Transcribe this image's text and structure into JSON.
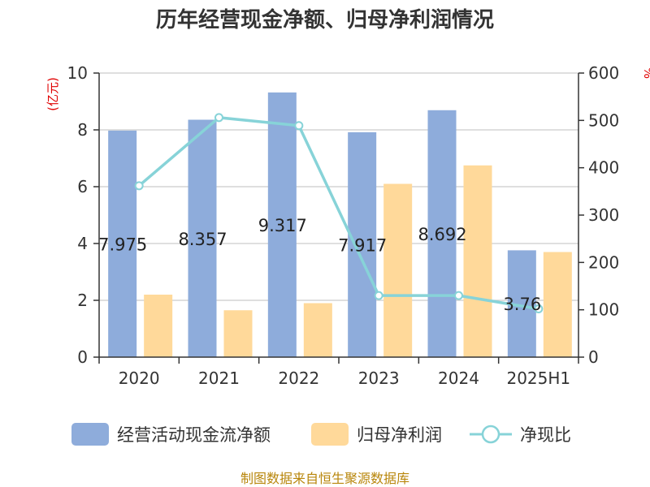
{
  "chart_data": {
    "type": "bar",
    "title": "历年经营现金净额、归母净利润情况",
    "categories": [
      "2020",
      "2021",
      "2022",
      "2023",
      "2024",
      "2025H1"
    ],
    "left_axis": {
      "unit": "(亿元)",
      "ylim": [
        0,
        10
      ],
      "ticks": [
        "0",
        "2",
        "4",
        "6",
        "8",
        "10"
      ]
    },
    "right_axis": {
      "unit": "%",
      "ylim": [
        0,
        600
      ],
      "ticks": [
        "0",
        "100",
        "200",
        "300",
        "400",
        "500",
        "600"
      ]
    },
    "series": [
      {
        "name": "经营活动现金流净额",
        "type": "bar",
        "axis": "left",
        "color": "#8eacdb",
        "values": [
          7.975,
          8.357,
          9.317,
          7.917,
          8.692,
          3.76
        ],
        "labels": [
          "7.975",
          "8.357",
          "9.317",
          "7.917",
          "8.692",
          "3.76"
        ]
      },
      {
        "name": "归母净利润",
        "type": "bar",
        "axis": "left",
        "color": "#ffd99a",
        "values": [
          2.2,
          1.65,
          1.9,
          6.1,
          6.75,
          3.7
        ]
      },
      {
        "name": "净现比",
        "type": "line",
        "axis": "right",
        "color": "#87d3d8",
        "values": [
          362,
          506,
          489,
          130,
          130,
          102
        ]
      }
    ],
    "grid": true,
    "legend_position": "bottom"
  },
  "source_text": "制图数据来自恒生聚源数据库"
}
